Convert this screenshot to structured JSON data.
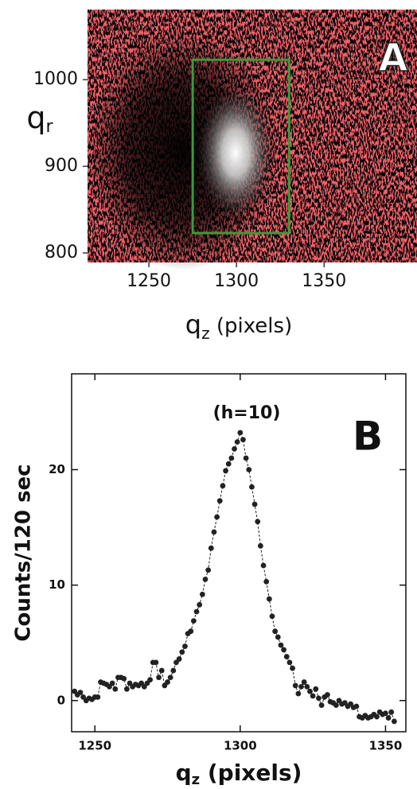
{
  "chart_data": [
    {
      "type": "image",
      "panel_label": "A",
      "xlim": [
        1215,
        1403
      ],
      "ylim": [
        789,
        1081
      ],
      "xticks": [
        1250,
        1300,
        1350
      ],
      "yticks": [
        800,
        900,
        1000
      ],
      "ylabel": {
        "base": "q",
        "subscript": "r"
      },
      "xlabel": {
        "base": "q",
        "subscript": "z",
        "rest": " (pixels)"
      },
      "roi": {
        "x": [
          1275,
          1330
        ],
        "y": [
          823,
          1023
        ]
      },
      "roi_color": "#3c9a3c"
    },
    {
      "type": "line",
      "panel_label": "B",
      "annotation": "(h=10)",
      "xlim": [
        1242,
        1357
      ],
      "ylim": [
        -2.7,
        28.3
      ],
      "xticks": [
        1250,
        1300,
        1350
      ],
      "yticks": [
        0,
        10,
        20
      ],
      "ylabel": "Counts/120 sec",
      "xlabel": {
        "base": "q",
        "subscript": "z",
        "rest": " (pixels)"
      },
      "color": "#222222",
      "x": [
        1243,
        1244,
        1245,
        1246,
        1247,
        1248,
        1249,
        1250,
        1251,
        1252,
        1253,
        1254,
        1255,
        1256,
        1257,
        1258,
        1259,
        1260,
        1261,
        1262,
        1263,
        1264,
        1265,
        1266,
        1267,
        1268,
        1269,
        1270,
        1271,
        1272,
        1273,
        1274,
        1275,
        1276,
        1277,
        1278,
        1279,
        1280,
        1281,
        1282,
        1283,
        1284,
        1285,
        1286,
        1287,
        1288,
        1289,
        1290,
        1291,
        1292,
        1293,
        1294,
        1295,
        1296,
        1297,
        1298,
        1299,
        1300,
        1301,
        1302,
        1303,
        1304,
        1305,
        1306,
        1307,
        1308,
        1309,
        1310,
        1311,
        1312,
        1313,
        1314,
        1315,
        1316,
        1317,
        1318,
        1319,
        1320,
        1321,
        1322,
        1323,
        1324,
        1325,
        1326,
        1327,
        1328,
        1329,
        1330,
        1331,
        1332,
        1333,
        1334,
        1335,
        1336,
        1337,
        1338,
        1339,
        1340,
        1341,
        1342,
        1343,
        1344,
        1345,
        1346,
        1347,
        1348,
        1349,
        1350,
        1351,
        1352,
        1353
      ],
      "values": [
        0.8,
        0.5,
        0.7,
        0.3,
        0,
        0.2,
        0.1,
        0.3,
        0.3,
        1.6,
        1.5,
        1.4,
        1.2,
        1.5,
        1.0,
        2.0,
        2.0,
        1.9,
        1.0,
        1.5,
        1.2,
        1.4,
        1.3,
        1.5,
        1.2,
        1.5,
        1.8,
        3.3,
        3.3,
        2.0,
        2.6,
        1.3,
        1.6,
        2.0,
        2.6,
        3.3,
        3.6,
        4.2,
        4.7,
        5.8,
        6.0,
        6.9,
        7.7,
        8.3,
        9.2,
        10.5,
        11.3,
        13.2,
        14.6,
        15.9,
        17.3,
        18.6,
        19.9,
        20.5,
        21.0,
        21.8,
        22.4,
        23.2,
        22.6,
        21.0,
        20.0,
        18.5,
        17.0,
        15.5,
        13.4,
        11.7,
        10.3,
        8.8,
        7.3,
        6.0,
        5.5,
        4.8,
        4.4,
        3.8,
        3.3,
        2.8,
        1.3,
        0.6,
        1.2,
        1.6,
        1.2,
        0.8,
        0.4,
        1.0,
        0.2,
        -0.4,
        0.3,
        0.5,
        -0.1,
        -0.2,
        -0.4,
        0.0,
        -0.3,
        -0.2,
        -0.5,
        -0.3,
        -0.6,
        -0.5,
        -1.4,
        -1.5,
        -1.3,
        -1.5,
        -1.4,
        -1.2,
        -1.4,
        -1.0,
        -1.2,
        -1.1,
        -1.5,
        -1.0,
        -1.8
      ]
    }
  ]
}
